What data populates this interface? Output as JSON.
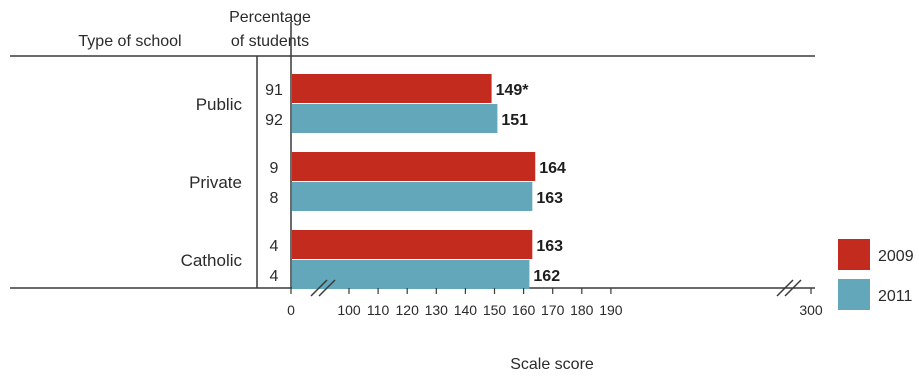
{
  "chart_data": {
    "type": "bar",
    "orientation": "horizontal",
    "header_left": "Type of school",
    "header_mid_line1": "Percentage",
    "header_mid_line2": "of students",
    "xlabel": "Scale score",
    "categories": [
      "Public",
      "Private",
      "Catholic"
    ],
    "series": [
      {
        "name": "2009",
        "color": "#c32b1f",
        "values": [
          149,
          164,
          163
        ],
        "value_labels": [
          "149*",
          "164",
          "163"
        ],
        "percentages": [
          "91",
          "9",
          "4"
        ]
      },
      {
        "name": "2011",
        "color": "#63a7ba",
        "values": [
          151,
          163,
          162
        ],
        "value_labels": [
          "151",
          "163",
          "162"
        ],
        "percentages": [
          "92",
          "8",
          "4"
        ]
      }
    ],
    "xticks": [
      "0",
      "100",
      "110",
      "120",
      "130",
      "140",
      "150",
      "160",
      "170",
      "180",
      "190",
      "300"
    ],
    "axis_breaks": [
      "0–100",
      "190–300"
    ],
    "legend_position": "right"
  }
}
